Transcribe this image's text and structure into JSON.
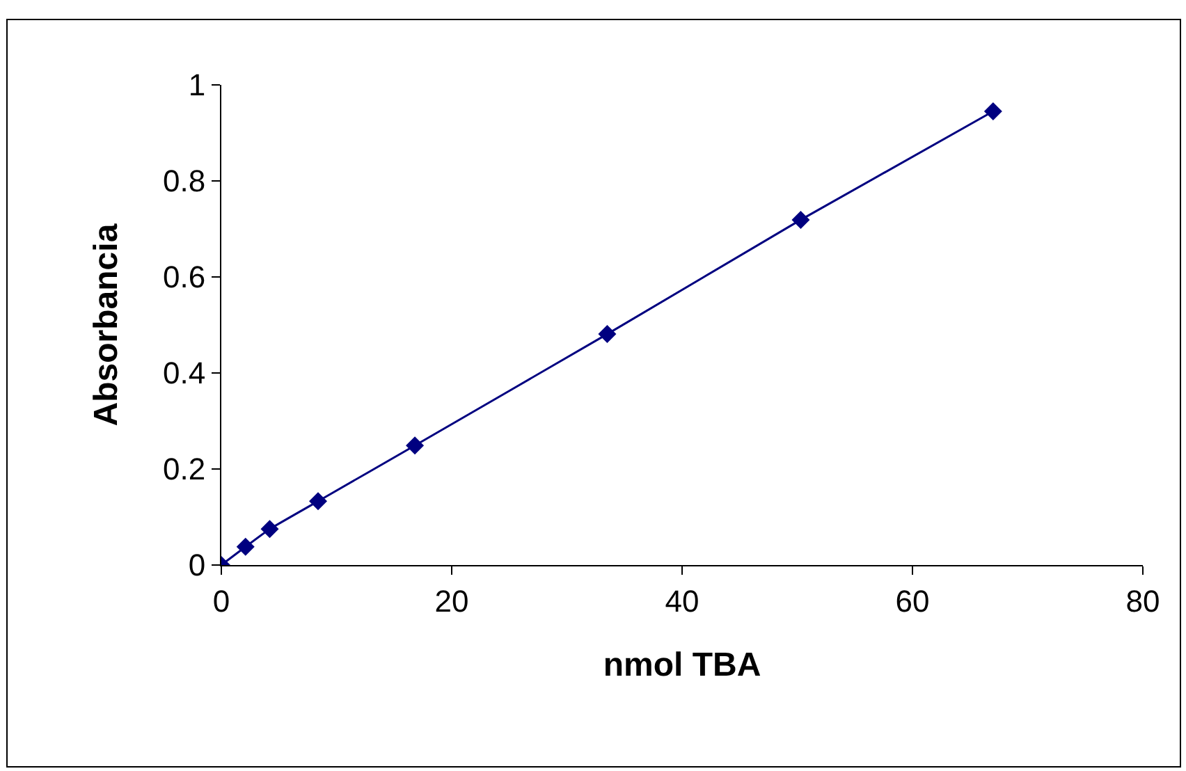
{
  "chart_data": {
    "type": "line",
    "xlabel": "nmol TBA",
    "ylabel": "Absorbancia",
    "x": [
      0,
      2.1,
      4.2,
      8.4,
      16.8,
      33.5,
      50.3,
      67
    ],
    "series": [
      {
        "color": "#000080",
        "values": [
          0,
          0.038,
          0.075,
          0.133,
          0.249,
          0.481,
          0.719,
          0.945
        ]
      }
    ],
    "xlim": [
      0,
      80
    ],
    "xticks": [
      0,
      20,
      40,
      60,
      80
    ],
    "ylim": [
      0,
      1
    ],
    "yticks": [
      0,
      0.2,
      0.4,
      0.6,
      0.8,
      1
    ],
    "marker": "diamond",
    "line_style": "solid"
  }
}
